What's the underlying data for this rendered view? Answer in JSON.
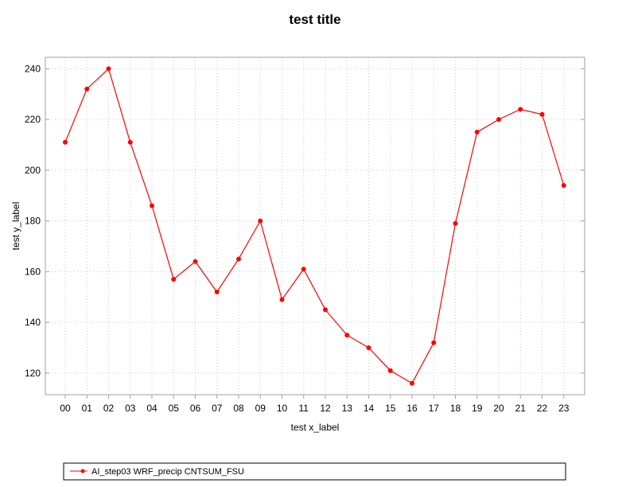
{
  "chart_data": {
    "type": "line",
    "title": "test title",
    "xlabel": "test x_label",
    "ylabel": "test y_label",
    "categories": [
      "00",
      "01",
      "02",
      "03",
      "04",
      "05",
      "06",
      "07",
      "08",
      "09",
      "10",
      "11",
      "12",
      "13",
      "14",
      "15",
      "16",
      "17",
      "18",
      "19",
      "20",
      "21",
      "22",
      "23"
    ],
    "series": [
      {
        "name": "AI_step03 WRF_precip CNTSUM_FSU",
        "values": [
          211,
          232,
          240,
          211,
          186,
          157,
          164,
          152,
          165,
          180,
          149,
          161,
          145,
          135,
          130,
          121,
          116,
          132,
          179,
          215,
          220,
          224,
          222,
          194
        ],
        "color": "#ff0000"
      }
    ],
    "yticks": [
      120,
      140,
      160,
      180,
      200,
      220,
      240
    ],
    "ylim": [
      111.5,
      244.5
    ],
    "grid": true,
    "legend_position": "bottom"
  }
}
